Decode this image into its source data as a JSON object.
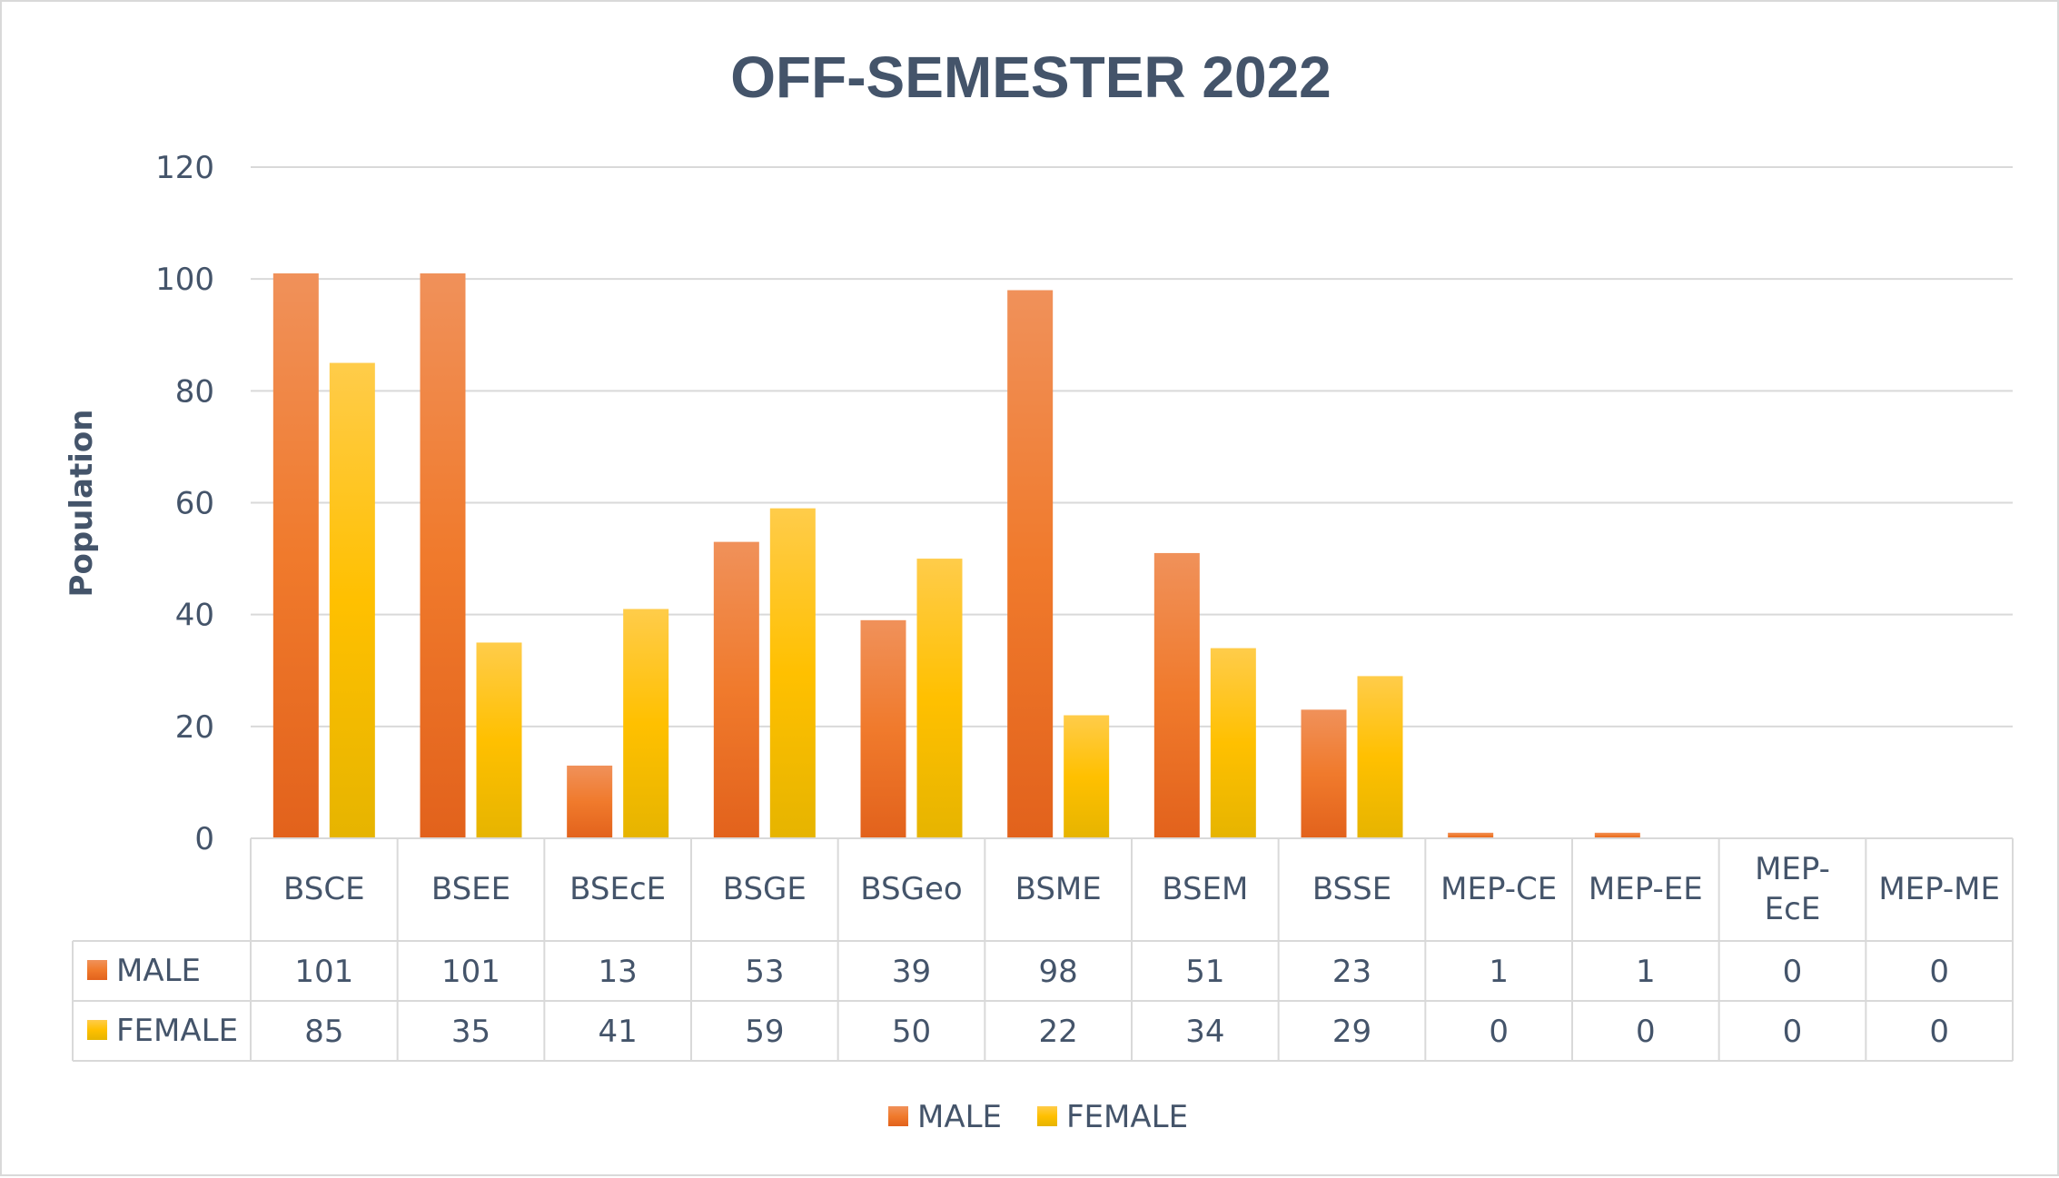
{
  "chart_data": {
    "type": "bar",
    "title": "OFF-SEMESTER 2022",
    "xlabel": "",
    "ylabel": "Population",
    "ylim": [
      0,
      120
    ],
    "yticks": [
      0,
      20,
      40,
      60,
      80,
      100,
      120
    ],
    "categories": [
      [
        "BSCE"
      ],
      [
        "BSEE"
      ],
      [
        "BSEcE"
      ],
      [
        "BSGE"
      ],
      [
        "BSGeo"
      ],
      [
        "BSME"
      ],
      [
        "BSEM"
      ],
      [
        "BSSE"
      ],
      [
        "MEP-CE"
      ],
      [
        "MEP-EE"
      ],
      [
        "MEP-",
        "EcE"
      ],
      [
        "MEP-ME"
      ]
    ],
    "series": [
      {
        "name": "MALE",
        "values": [
          101,
          101,
          13,
          53,
          39,
          98,
          51,
          23,
          1,
          1,
          0,
          0
        ]
      },
      {
        "name": "FEMALE",
        "values": [
          85,
          35,
          41,
          59,
          50,
          22,
          34,
          29,
          0,
          0,
          0,
          0
        ]
      }
    ],
    "grid": true,
    "legend": "bottom",
    "data_table": true,
    "colors": {
      "male_top": "#f0915a",
      "male_mid": "#f07a2c",
      "male_bottom": "#e2621c",
      "female_top": "#ffcc4a",
      "female_mid": "#ffc000",
      "female_bottom": "#e6b400",
      "text": "#44546a",
      "grid": "#d9d9d9"
    }
  }
}
